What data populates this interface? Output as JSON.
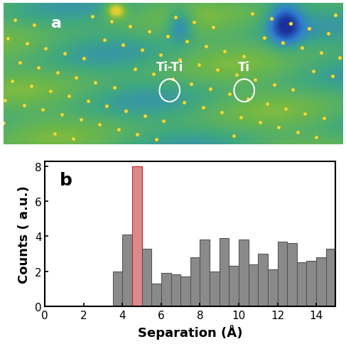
{
  "chart_data": [
    {
      "type": "image",
      "label": "a",
      "annotations": [
        "Ti-Ti",
        "Ti"
      ]
    },
    {
      "type": "histogram",
      "label": "b",
      "x_label": "Separation (Å)",
      "y_label": "Counts ( a.u.)",
      "bins": [
        3.5,
        4.0,
        4.5,
        5.0,
        5.5,
        6.0,
        6.5,
        7.0,
        7.5,
        8.0,
        8.5,
        9.0,
        9.5,
        10.0,
        10.5,
        11.0,
        11.5,
        12.0,
        12.5,
        13.0,
        13.5,
        14.0,
        14.5,
        15.0
      ],
      "values": [
        2.0,
        4.1,
        8.0,
        3.3,
        1.3,
        1.9,
        1.8,
        1.7,
        2.8,
        3.8,
        2.0,
        3.9,
        2.3,
        3.8,
        2.4,
        3.0,
        2.1,
        3.7,
        3.6,
        2.5,
        2.6,
        2.8,
        3.3
      ],
      "colors": [
        "#8a8a8a",
        "#8a8a8a",
        "#d98a8a",
        "#8a8a8a",
        "#8a8a8a",
        "#8a8a8a",
        "#8a8a8a",
        "#8a8a8a",
        "#8a8a8a",
        "#8a8a8a",
        "#8a8a8a",
        "#8a8a8a",
        "#8a8a8a",
        "#8a8a8a",
        "#8a8a8a",
        "#8a8a8a",
        "#8a8a8a",
        "#8a8a8a",
        "#8a8a8a",
        "#8a8a8a",
        "#8a8a8a",
        "#8a8a8a",
        "#8a8a8a"
      ],
      "xlim": [
        0,
        15
      ],
      "ylim": [
        0,
        8.3
      ],
      "xticks": [
        0,
        2,
        4,
        6,
        8,
        10,
        12,
        14
      ],
      "yticks": [
        0,
        2,
        4,
        6,
        8
      ]
    }
  ]
}
